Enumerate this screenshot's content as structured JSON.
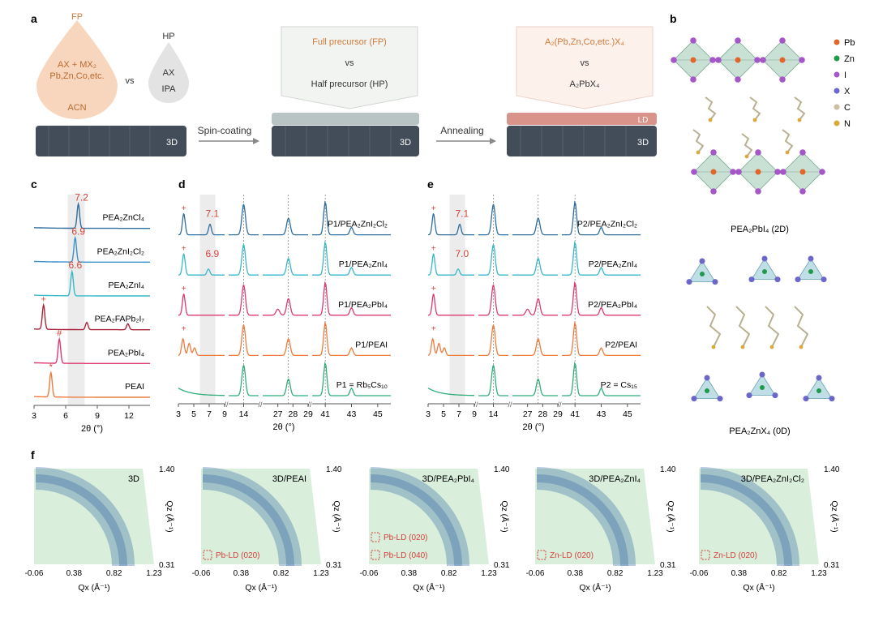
{
  "panels": {
    "a": "a",
    "b": "b",
    "c": "c",
    "d": "d",
    "e": "e",
    "f": "f"
  },
  "panel_a": {
    "fp_top": "FP",
    "fp_line1": "AX + MX₂",
    "fp_line2": "Pb,Zn,Co,etc.",
    "fp_bottom": "ACN",
    "vs": "vs",
    "hp_top": "HP",
    "hp_line1": "AX",
    "hp_line2": "IPA",
    "box1_line1": "Full precursor (FP)",
    "box1_line2": "vs",
    "box1_line3": "Half precursor (HP)",
    "box2_line1": "A₂(Pb,Zn,Co,etc.)X₄",
    "box2_line2": "vs",
    "box2_line3": "A₂PbX₄",
    "step1": "Spin-coating",
    "step2": "Annealing",
    "sub_label": "3D",
    "ld_label": "LD"
  },
  "panel_b": {
    "legend": [
      {
        "label": "Pb",
        "color": "#e0662a"
      },
      {
        "label": "Zn",
        "color": "#1f9a4a"
      },
      {
        "label": "I",
        "color": "#a557c8"
      },
      {
        "label": "X",
        "color": "#6b66c9"
      },
      {
        "label": "C",
        "color": "#c9c0a3"
      },
      {
        "label": "N",
        "color": "#d9a93a"
      }
    ],
    "caption1": "PEA₂PbI₄ (2D)",
    "caption2": "PEA₂ZnX₄ (0D)"
  },
  "chart_data": [
    {
      "type": "line",
      "panel": "c",
      "xlabel": "2θ (°)",
      "xticks": [
        "3",
        "6",
        "9",
        "12"
      ],
      "xlim": [
        3,
        14
      ],
      "series": [
        {
          "name": "PEA₂ZnCl₄",
          "color": "#2f6e9e",
          "peak_label": "7.2",
          "peaks": [
            [
              7.2,
              1.0
            ]
          ]
        },
        {
          "name": "PEA₂ZnI₂Cl₂",
          "color": "#3d8fc9",
          "peak_label": "6.9",
          "peaks": [
            [
              6.9,
              1.0
            ]
          ]
        },
        {
          "name": "PEA₂ZnI₄",
          "color": "#37b8c9",
          "peak_label": "6.6",
          "peaks": [
            [
              6.6,
              1.0
            ]
          ]
        },
        {
          "name": "PEA₂FAPb₂I₇",
          "color": "#a8263a",
          "peak_label": "+",
          "peaks": [
            [
              3.9,
              1.0
            ],
            [
              8.0,
              0.3
            ],
            [
              11.9,
              0.25
            ]
          ]
        },
        {
          "name": "PEA₂PbI₄",
          "color": "#dd3a6e",
          "peak_label": "#",
          "peaks": [
            [
              5.4,
              1.0
            ]
          ]
        },
        {
          "name": "PEAI",
          "color": "#ee7b3c",
          "peak_label": "*",
          "peaks": [
            [
              4.6,
              1.0
            ]
          ]
        }
      ],
      "highlight_range": [
        6.2,
        7.8
      ]
    },
    {
      "type": "line",
      "panel": "d",
      "xlabel": "2θ (°)",
      "xticks": [
        "3",
        "5",
        "7",
        "9",
        "14",
        "27",
        "28",
        "29",
        "41",
        "43",
        "45"
      ],
      "series": [
        {
          "name": "P1/PEA₂ZnI₂Cl₂",
          "color": "#2f6e9e",
          "peak_label": "7.1"
        },
        {
          "name": "P1/PEA₂ZnI₄",
          "color": "#37b8c9",
          "peak_label": "6.9"
        },
        {
          "name": "P1/PEA₂PbI₄",
          "color": "#dd3a6e"
        },
        {
          "name": "P1/PEAI",
          "color": "#ee7b3c"
        },
        {
          "name": "P1 = Rb₅Cs₁₀",
          "color": "#2fae7a"
        }
      ],
      "markers": [
        "+",
        "+",
        "+",
        "+",
        "*",
        "#"
      ]
    },
    {
      "type": "line",
      "panel": "e",
      "xlabel": "2θ (°)",
      "xticks": [
        "3",
        "5",
        "7",
        "9",
        "14",
        "27",
        "28",
        "29",
        "41",
        "43",
        "45"
      ],
      "series": [
        {
          "name": "P2/PEA₂ZnI₂Cl₂",
          "color": "#2f6e9e",
          "peak_label": "7.1"
        },
        {
          "name": "P2/PEA₂ZnI₄",
          "color": "#37b8c9",
          "peak_label": "7.0"
        },
        {
          "name": "P2/PEA₂PbI₄",
          "color": "#dd3a6e"
        },
        {
          "name": "P2/PEAI",
          "color": "#ee7b3c"
        },
        {
          "name": "P2 = Cs₁₅",
          "color": "#2fae7a"
        }
      ],
      "markers": [
        "+",
        "+",
        "*#"
      ]
    },
    {
      "type": "heatmap",
      "panel": "f",
      "xlabel": "Qx (Å⁻¹)",
      "ylabel": "Qz (Å⁻¹)",
      "xticks": [
        "-0.06",
        "0.38",
        "0.82",
        "1.23"
      ],
      "yticks": [
        "1.40",
        "0.31"
      ],
      "maps": [
        {
          "title": "3D",
          "annotations": []
        },
        {
          "title": "3D/PEAI",
          "annotations": [
            "Pb-LD (020)"
          ]
        },
        {
          "title": "3D/PEA₂PbI₄",
          "annotations": [
            "Pb-LD (040)",
            "Pb-LD (020)"
          ]
        },
        {
          "title": "3D/PEA₂ZnI₄",
          "annotations": [
            "Zn-LD (020)"
          ]
        },
        {
          "title": "3D/PEA₂ZnI₂Cl₂",
          "annotations": [
            "Zn-LD (020)"
          ]
        }
      ]
    }
  ],
  "colors": {
    "accent_red": "#d2413a",
    "fp_fill": "#f8d6bd",
    "hp_fill": "#e3e3e3",
    "substrate": "#434d5a",
    "layer_gray": "#b8c4c4",
    "layer_ld": "#d9938a",
    "giwaxs_bg": "#d9eedb",
    "giwaxs_ring": "#3a6ea5"
  }
}
